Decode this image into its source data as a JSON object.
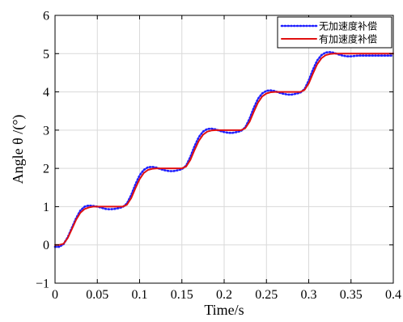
{
  "chart_data": {
    "type": "line",
    "xlabel": "Time/s",
    "ylabel": "Angle θ /(°)",
    "xlim": [
      0,
      0.4
    ],
    "ylim": [
      -1,
      6
    ],
    "x_ticks": [
      "0",
      "0.05",
      "0.1",
      "0.15",
      "0.2",
      "0.25",
      "0.3",
      "0.35",
      "0.4"
    ],
    "x_tick_values": [
      0,
      0.05,
      0.1,
      0.15,
      0.2,
      0.25,
      0.3,
      0.35,
      0.4
    ],
    "y_ticks": [
      "−1",
      "0",
      "1",
      "2",
      "3",
      "4",
      "5",
      "6"
    ],
    "y_tick_values": [
      -1,
      0,
      1,
      2,
      3,
      4,
      5,
      6
    ],
    "grid": true,
    "legend_position": "top-right",
    "series": [
      {
        "name": "无加速度补偿",
        "color": "#1f1fff",
        "style": "dotted",
        "x": [
          0,
          0.005,
          0.01,
          0.015,
          0.02,
          0.025,
          0.03,
          0.035,
          0.04,
          0.045,
          0.05,
          0.055,
          0.06,
          0.065,
          0.07,
          0.075,
          0.08,
          0.085,
          0.09,
          0.095,
          0.1,
          0.105,
          0.11,
          0.115,
          0.12,
          0.125,
          0.13,
          0.135,
          0.14,
          0.145,
          0.15,
          0.155,
          0.16,
          0.165,
          0.17,
          0.175,
          0.18,
          0.185,
          0.19,
          0.195,
          0.2,
          0.205,
          0.21,
          0.215,
          0.22,
          0.225,
          0.23,
          0.235,
          0.24,
          0.245,
          0.25,
          0.255,
          0.26,
          0.265,
          0.27,
          0.275,
          0.28,
          0.285,
          0.29,
          0.295,
          0.3,
          0.305,
          0.31,
          0.315,
          0.32,
          0.325,
          0.33,
          0.335,
          0.34,
          0.345,
          0.35,
          0.355,
          0.36,
          0.365,
          0.37,
          0.375,
          0.38,
          0.385,
          0.39,
          0.395,
          0.4
        ],
        "values": [
          -0.05,
          -0.05,
          0.02,
          0.2,
          0.45,
          0.7,
          0.9,
          1.0,
          1.03,
          1.02,
          1.0,
          0.97,
          0.94,
          0.93,
          0.94,
          0.96,
          0.99,
          1.08,
          1.3,
          1.58,
          1.82,
          1.96,
          2.03,
          2.04,
          2.02,
          1.98,
          1.95,
          1.93,
          1.93,
          1.95,
          1.98,
          2.07,
          2.3,
          2.58,
          2.82,
          2.96,
          3.03,
          3.04,
          3.02,
          2.98,
          2.95,
          2.93,
          2.93,
          2.95,
          2.98,
          3.07,
          3.3,
          3.58,
          3.82,
          3.96,
          4.03,
          4.04,
          4.02,
          3.98,
          3.95,
          3.93,
          3.93,
          3.95,
          3.98,
          4.07,
          4.3,
          4.58,
          4.82,
          4.96,
          5.03,
          5.04,
          5.02,
          4.98,
          4.95,
          4.93,
          4.93,
          4.94,
          4.95,
          4.95,
          4.95,
          4.95,
          4.95,
          4.95,
          4.95,
          4.95,
          4.95
        ]
      },
      {
        "name": "有加速度补偿",
        "color": "#e01010",
        "style": "solid",
        "x": [
          0,
          0.005,
          0.01,
          0.015,
          0.02,
          0.025,
          0.03,
          0.035,
          0.04,
          0.045,
          0.05,
          0.055,
          0.06,
          0.065,
          0.07,
          0.075,
          0.08,
          0.085,
          0.09,
          0.095,
          0.1,
          0.105,
          0.11,
          0.115,
          0.12,
          0.125,
          0.13,
          0.135,
          0.14,
          0.145,
          0.15,
          0.155,
          0.16,
          0.165,
          0.17,
          0.175,
          0.18,
          0.185,
          0.19,
          0.195,
          0.2,
          0.205,
          0.21,
          0.215,
          0.22,
          0.225,
          0.23,
          0.235,
          0.24,
          0.245,
          0.25,
          0.255,
          0.26,
          0.265,
          0.27,
          0.275,
          0.28,
          0.285,
          0.29,
          0.295,
          0.3,
          0.305,
          0.31,
          0.315,
          0.32,
          0.325,
          0.33,
          0.335,
          0.34,
          0.345,
          0.35,
          0.355,
          0.36,
          0.365,
          0.37,
          0.375,
          0.38,
          0.385,
          0.39,
          0.395,
          0.4
        ],
        "values": [
          0.0,
          0.0,
          0.03,
          0.18,
          0.42,
          0.66,
          0.84,
          0.94,
          0.98,
          1.0,
          1.0,
          1.0,
          1.0,
          1.0,
          1.0,
          1.0,
          1.0,
          1.05,
          1.22,
          1.48,
          1.72,
          1.88,
          1.96,
          1.99,
          2.0,
          2.0,
          2.0,
          2.0,
          2.0,
          2.0,
          2.0,
          2.05,
          2.22,
          2.48,
          2.72,
          2.88,
          2.96,
          2.99,
          3.0,
          3.0,
          3.0,
          3.0,
          3.0,
          3.0,
          3.0,
          3.05,
          3.22,
          3.48,
          3.72,
          3.88,
          3.96,
          3.99,
          4.0,
          4.0,
          4.0,
          4.0,
          4.0,
          4.0,
          4.0,
          4.05,
          4.22,
          4.48,
          4.72,
          4.88,
          4.96,
          4.99,
          5.0,
          5.0,
          5.0,
          5.0,
          5.0,
          5.0,
          5.0,
          5.0,
          5.0,
          5.0,
          5.0,
          5.0,
          5.0,
          5.0,
          5.0
        ]
      }
    ]
  }
}
